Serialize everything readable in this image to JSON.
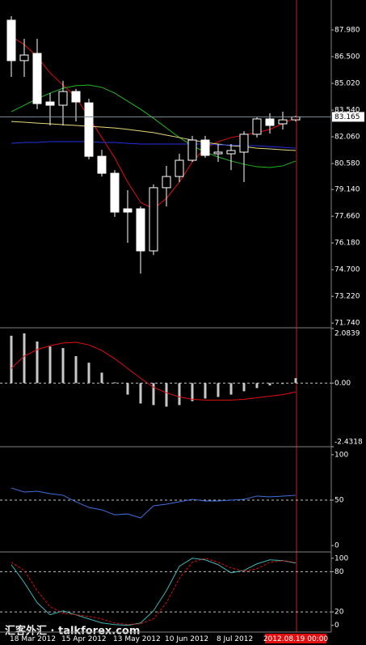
{
  "chart_data": [
    {
      "type": "candlestick",
      "categories": [
        "18 Mar 2012",
        null,
        null,
        null,
        "15 Apr 2012",
        null,
        null,
        null,
        "13 May 2012",
        null,
        null,
        null,
        "10 Jun 2012",
        null,
        null,
        null,
        "8 Jul 2012",
        null,
        null,
        null,
        null,
        null,
        "2012.08.19 00:00"
      ],
      "open": [
        88.52,
        86.28,
        86.68,
        83.99,
        83.81,
        84.57,
        83.94,
        80.98,
        80.04,
        78.07,
        78.07,
        75.74,
        79.24,
        79.86,
        80.76,
        81.88,
        81.12,
        81.12,
        81.21,
        82.2,
        83.05,
        82.78,
        83.0
      ],
      "high": [
        88.74,
        87.49,
        87.49,
        84.48,
        85.16,
        84.71,
        84.17,
        81.34,
        80.22,
        79.1,
        78.2,
        79.42,
        80.45,
        81.12,
        82.11,
        82.11,
        81.66,
        81.66,
        82.37,
        83.14,
        83.36,
        83.45,
        83.23
      ],
      "low": [
        85.38,
        85.38,
        83.59,
        82.69,
        82.69,
        82.91,
        80.81,
        79.86,
        77.62,
        76.19,
        74.48,
        75.51,
        78.2,
        79.55,
        80.67,
        80.9,
        80.67,
        80.22,
        79.55,
        82.02,
        82.24,
        82.46,
        82.91
      ],
      "close": [
        86.28,
        86.59,
        83.9,
        83.81,
        84.57,
        83.99,
        80.98,
        80.04,
        77.89,
        77.89,
        75.74,
        79.24,
        79.86,
        80.76,
        81.88,
        81.03,
        81.21,
        81.3,
        82.2,
        83.05,
        82.69,
        83.0,
        83.165
      ],
      "series": [
        {
          "color": "#e01010",
          "values": [
            87.62,
            87.17,
            86.5,
            85.6,
            84.93,
            84.26,
            83.14,
            82.02,
            80.9,
            79.55,
            78.43,
            78.07,
            78.65,
            79.55,
            80.67,
            81.43,
            81.79,
            82.02,
            82.15,
            82.29,
            82.47,
            82.78,
            83.14
          ]
        },
        {
          "color": "#22b822",
          "values": [
            83.45,
            83.81,
            84.17,
            84.48,
            84.75,
            84.89,
            84.93,
            84.8,
            84.48,
            84.03,
            83.59,
            83.09,
            82.55,
            82.02,
            81.57,
            81.21,
            80.94,
            80.72,
            80.54,
            80.4,
            80.36,
            80.45,
            80.72
          ]
        },
        {
          "color": "#e6d67a",
          "values": [
            82.91,
            82.87,
            82.82,
            82.78,
            82.73,
            82.69,
            82.64,
            82.6,
            82.55,
            82.47,
            82.38,
            82.29,
            82.15,
            82.02,
            81.88,
            81.75,
            81.66,
            81.57,
            81.52,
            81.43,
            81.39,
            81.34,
            81.3
          ]
        },
        {
          "color": "#2233dd",
          "values": [
            81.7,
            81.75,
            81.75,
            81.79,
            81.79,
            81.79,
            81.79,
            81.75,
            81.75,
            81.7,
            81.66,
            81.66,
            81.66,
            81.66,
            81.66,
            81.66,
            81.61,
            81.61,
            81.57,
            81.57,
            81.52,
            81.48,
            81.43
          ]
        }
      ],
      "current_price": 83.165,
      "ylim": [
        71.48,
        89.46
      ],
      "yticks": [
        {
          "value": 87.98,
          "label": "87.980"
        },
        {
          "value": 86.5,
          "label": "86.500"
        },
        {
          "value": 85.02,
          "label": "85.020"
        },
        {
          "value": 83.54,
          "label": "83.540"
        },
        {
          "value": 82.06,
          "label": "82.060"
        },
        {
          "value": 80.58,
          "label": "80.580"
        },
        {
          "value": 79.14,
          "label": "79.140"
        },
        {
          "value": 77.66,
          "label": "77.660"
        },
        {
          "value": 76.18,
          "label": "76.180"
        },
        {
          "value": 74.7,
          "label": "74.700"
        },
        {
          "value": 73.22,
          "label": "73.220"
        },
        {
          "value": 71.74,
          "label": "71.740"
        }
      ],
      "watermark": "汇客外汇 · talkforex.com"
    },
    {
      "type": "macd",
      "values": [
        1.81,
        1.9,
        1.59,
        1.4,
        1.34,
        1.03,
        0.78,
        0.4,
        0.03,
        -0.44,
        -0.78,
        -0.84,
        -0.9,
        -0.84,
        -0.69,
        -0.59,
        -0.53,
        -0.44,
        -0.31,
        -0.19,
        -0.09,
        -0.03,
        0.19
      ],
      "color": "#c8c8c8",
      "series": [
        {
          "color": "#e01010",
          "values": [
            0.56,
            1.03,
            1.28,
            1.43,
            1.53,
            1.56,
            1.46,
            1.25,
            0.93,
            0.56,
            0.19,
            -0.16,
            -0.37,
            -0.53,
            -0.62,
            -0.65,
            -0.65,
            -0.65,
            -0.62,
            -0.56,
            -0.5,
            -0.44,
            -0.34
          ]
        }
      ],
      "ylim": [
        -2.4318,
        2.0839
      ],
      "yticks": [
        2.0839,
        {
          "value": 0,
          "label": "0.00"
        },
        -2.4318
      ],
      "levels": [
        0
      ]
    },
    {
      "type": "line",
      "series": [
        {
          "color": "#3f6fe0",
          "values": [
            63.4,
            58.9,
            59.8,
            57.1,
            55.4,
            48.2,
            42.0,
            39.3,
            33.9,
            34.8,
            30.4,
            43.8,
            45.5,
            48.2,
            50.9,
            49.1,
            49.1,
            50.0,
            50.9,
            54.5,
            53.6,
            54.5,
            55.4
          ]
        }
      ],
      "ylim": [
        -7,
        107
      ],
      "yticks": [
        100,
        50,
        0
      ],
      "levels": [
        50
      ]
    },
    {
      "type": "line",
      "series": [
        {
          "color": "#40b4b4",
          "values": [
            90.4,
            63.9,
            33.7,
            15.7,
            21.7,
            15.7,
            9.6,
            3.6,
            1.2,
            0,
            3.6,
            21.7,
            51.8,
            88.0,
            100,
            97.6,
            90.4,
            78.3,
            81.9,
            91.6,
            97.6,
            96.4,
            92.8
          ]
        },
        {
          "color": "#e01010",
          "dash": true,
          "values": [
            94.0,
            81.9,
            51.8,
            27.7,
            18.1,
            15.7,
            13.3,
            9.6,
            3.6,
            1.2,
            2.4,
            9.6,
            33.7,
            69.9,
            94.0,
            100,
            94.0,
            85.5,
            80.7,
            84.3,
            94.0,
            96.4,
            94.0
          ]
        }
      ],
      "ylim": [
        -10,
        107
      ],
      "yticks": [
        100,
        80,
        20,
        0
      ],
      "levels": [
        80,
        20
      ]
    }
  ]
}
